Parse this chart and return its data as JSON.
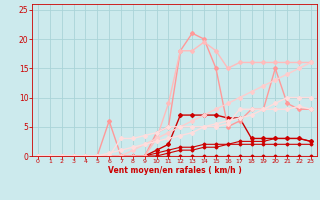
{
  "bg_color": "#cceaed",
  "grid_color": "#aad4d8",
  "xlabel": "Vent moyen/en rafales ( km/h )",
  "xlabel_color": "#cc0000",
  "tick_color": "#cc0000",
  "xlim": [
    -0.5,
    23.5
  ],
  "ylim": [
    0,
    26
  ],
  "xticks": [
    0,
    1,
    2,
    3,
    4,
    5,
    6,
    7,
    8,
    9,
    10,
    11,
    12,
    13,
    14,
    15,
    16,
    17,
    18,
    19,
    20,
    21,
    22,
    23
  ],
  "yticks": [
    0,
    5,
    10,
    15,
    20,
    25
  ],
  "lines": [
    {
      "x": [
        0,
        1,
        2,
        3,
        4,
        5,
        6,
        7,
        8,
        9,
        10,
        11,
        12,
        13,
        14,
        15,
        16,
        17,
        18,
        19,
        20,
        21,
        22,
        23
      ],
      "y": [
        0,
        0,
        0,
        0,
        0,
        0,
        0,
        0,
        0,
        0,
        0,
        0,
        0,
        0,
        0,
        0,
        0,
        0,
        0,
        0,
        0,
        0,
        0,
        0
      ],
      "color": "#cc0000",
      "lw": 0.8,
      "marker": "D",
      "ms": 1.5
    },
    {
      "x": [
        0,
        1,
        2,
        3,
        4,
        5,
        6,
        7,
        8,
        9,
        10,
        11,
        12,
        13,
        14,
        15,
        16,
        17,
        18,
        19,
        20,
        21,
        22,
        23
      ],
      "y": [
        0,
        0,
        0,
        0,
        0,
        0,
        0,
        0,
        0,
        0,
        0.5,
        1,
        1.5,
        1.5,
        2,
        2,
        2,
        2.5,
        2.5,
        2.5,
        3,
        3,
        3,
        2.5
      ],
      "color": "#cc0000",
      "lw": 0.8,
      "marker": "D",
      "ms": 1.5
    },
    {
      "x": [
        0,
        1,
        2,
        3,
        4,
        5,
        6,
        7,
        8,
        9,
        10,
        11,
        12,
        13,
        14,
        15,
        16,
        17,
        18,
        19,
        20,
        21,
        22,
        23
      ],
      "y": [
        0,
        0,
        0,
        0,
        0,
        0,
        0,
        0,
        0,
        0,
        0,
        0.5,
        1,
        1,
        1.5,
        1.5,
        2,
        2,
        2,
        2,
        2,
        2,
        2,
        2
      ],
      "color": "#cc0000",
      "lw": 0.8,
      "marker": "D",
      "ms": 1.5
    },
    {
      "x": [
        0,
        1,
        2,
        3,
        4,
        5,
        6,
        7,
        8,
        9,
        10,
        11,
        12,
        13,
        14,
        15,
        16,
        17,
        18,
        19,
        20,
        21,
        22,
        23
      ],
      "y": [
        0,
        0,
        0,
        0,
        0,
        0,
        0,
        0,
        0,
        0,
        1,
        2,
        7,
        7,
        7,
        7,
        6.5,
        6.5,
        3,
        3,
        3,
        3,
        3,
        2.5
      ],
      "color": "#cc0000",
      "lw": 1.0,
      "marker": "D",
      "ms": 2
    },
    {
      "x": [
        0,
        1,
        2,
        3,
        4,
        5,
        6,
        7,
        8,
        9,
        10,
        11,
        12,
        13,
        14,
        15,
        16,
        17,
        18,
        19,
        20,
        21,
        22,
        23
      ],
      "y": [
        0,
        0,
        0,
        0,
        0,
        0,
        6,
        0,
        0,
        0,
        4,
        5,
        18,
        21,
        20,
        15,
        5,
        6,
        8,
        8,
        15,
        9,
        8,
        8
      ],
      "color": "#ff9999",
      "lw": 1.0,
      "marker": "D",
      "ms": 2
    },
    {
      "x": [
        0,
        1,
        2,
        3,
        4,
        5,
        6,
        7,
        8,
        9,
        10,
        11,
        12,
        13,
        14,
        15,
        16,
        17,
        18,
        19,
        20,
        21,
        22,
        23
      ],
      "y": [
        0,
        0,
        0,
        0,
        0,
        0,
        0,
        0,
        0,
        0,
        3,
        9,
        18,
        18,
        19.5,
        18,
        15,
        16,
        16,
        16,
        16,
        16,
        16,
        16
      ],
      "color": "#ffbbbb",
      "lw": 1.0,
      "marker": "D",
      "ms": 2
    },
    {
      "x": [
        0,
        1,
        2,
        3,
        4,
        5,
        6,
        7,
        8,
        9,
        10,
        11,
        12,
        13,
        14,
        15,
        16,
        17,
        18,
        19,
        20,
        21,
        22,
        23
      ],
      "y": [
        0,
        0,
        0,
        0,
        0,
        0,
        0,
        0,
        1,
        2,
        3,
        4,
        5,
        6,
        7,
        8,
        9,
        10,
        11,
        12,
        13,
        14,
        15,
        16
      ],
      "color": "#ffcccc",
      "lw": 1.0,
      "marker": "D",
      "ms": 2
    },
    {
      "x": [
        0,
        1,
        2,
        3,
        4,
        5,
        6,
        7,
        8,
        9,
        10,
        11,
        12,
        13,
        14,
        15,
        16,
        17,
        18,
        19,
        20,
        21,
        22,
        23
      ],
      "y": [
        0,
        0,
        0,
        0,
        0,
        0,
        0,
        3,
        3,
        3.5,
        4,
        5,
        5,
        5,
        5,
        5,
        5.5,
        8,
        8,
        8,
        8,
        8,
        8.5,
        8
      ],
      "color": "#ffdddd",
      "lw": 1.0,
      "marker": "D",
      "ms": 2
    },
    {
      "x": [
        0,
        1,
        2,
        3,
        4,
        5,
        6,
        7,
        8,
        9,
        10,
        11,
        12,
        13,
        14,
        15,
        16,
        17,
        18,
        19,
        20,
        21,
        22,
        23
      ],
      "y": [
        0,
        0,
        0,
        0,
        0,
        0,
        0.5,
        1,
        1.5,
        2,
        2.5,
        3,
        3.5,
        4,
        5,
        5.5,
        6,
        6.5,
        7,
        8,
        9,
        10,
        10,
        10
      ],
      "color": "#ffdddd",
      "lw": 1.0,
      "marker": "D",
      "ms": 2
    }
  ]
}
